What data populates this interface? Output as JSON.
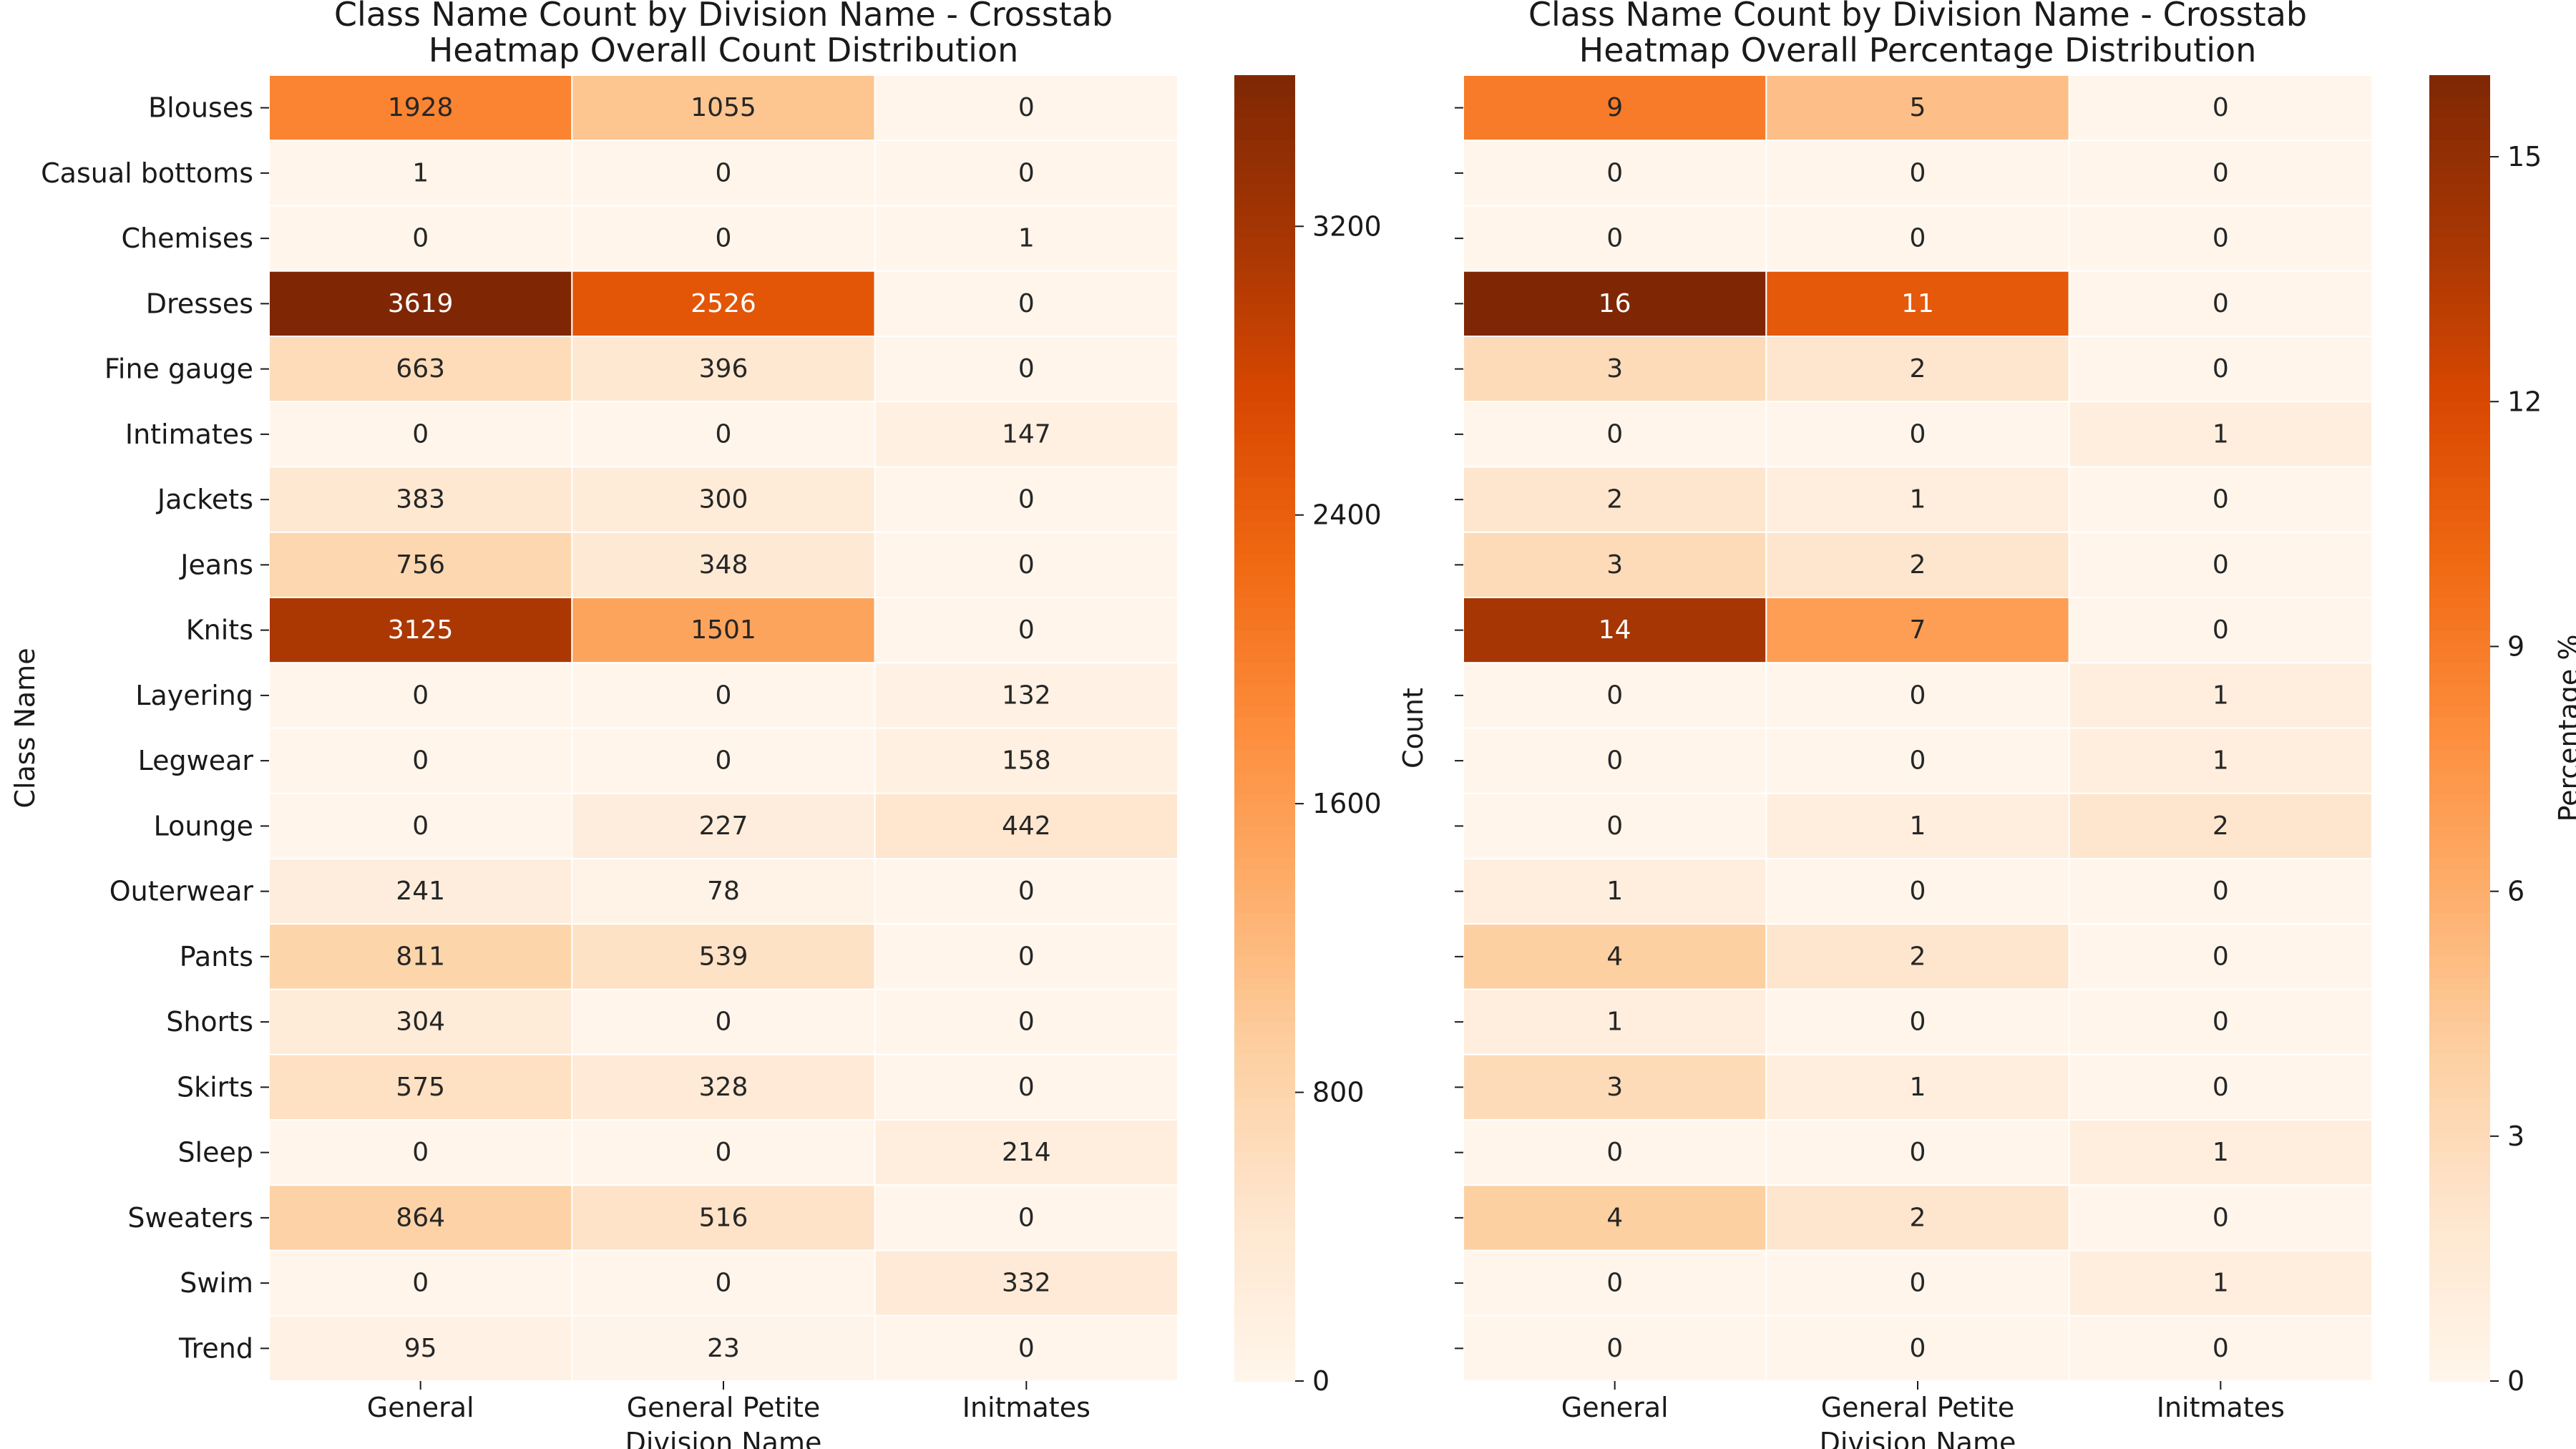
{
  "chart_data": [
    {
      "type": "heatmap",
      "title_lines": [
        "Class Name Count by Division Name - Crosstab",
        "Heatmap Overall Count Distribution"
      ],
      "xlabel": "Division Name",
      "ylabel": "Class Name",
      "x_categories": [
        "General",
        "General Petite",
        "Initmates"
      ],
      "y_categories": [
        "Blouses",
        "Casual bottoms",
        "Chemises",
        "Dresses",
        "Fine gauge",
        "Intimates",
        "Jackets",
        "Jeans",
        "Knits",
        "Layering",
        "Legwear",
        "Lounge",
        "Outerwear",
        "Pants",
        "Shorts",
        "Skirts",
        "Sleep",
        "Sweaters",
        "Swim",
        "Trend"
      ],
      "values": [
        [
          1928,
          1055,
          0
        ],
        [
          1,
          0,
          0
        ],
        [
          0,
          0,
          1
        ],
        [
          3619,
          2526,
          0
        ],
        [
          663,
          396,
          0
        ],
        [
          0,
          0,
          147
        ],
        [
          383,
          300,
          0
        ],
        [
          756,
          348,
          0
        ],
        [
          3125,
          1501,
          0
        ],
        [
          0,
          0,
          132
        ],
        [
          0,
          0,
          158
        ],
        [
          0,
          227,
          442
        ],
        [
          241,
          78,
          0
        ],
        [
          811,
          539,
          0
        ],
        [
          304,
          0,
          0
        ],
        [
          575,
          328,
          0
        ],
        [
          0,
          0,
          214
        ],
        [
          864,
          516,
          0
        ],
        [
          0,
          0,
          332
        ],
        [
          95,
          23,
          0
        ]
      ],
      "show_y_tick_labels": true,
      "colorbar": {
        "label": "Count",
        "range": [
          0,
          3619
        ],
        "ticks": [
          0,
          800,
          1600,
          2400,
          3200
        ],
        "colormap": "Oranges"
      }
    },
    {
      "type": "heatmap",
      "title_lines": [
        "Class Name Count by Division Name - Crosstab",
        "Heatmap Overall Percentage Distribution"
      ],
      "xlabel": "Division Name",
      "ylabel": "",
      "x_categories": [
        "General",
        "General Petite",
        "Initmates"
      ],
      "y_categories": [
        "Blouses",
        "Casual bottoms",
        "Chemises",
        "Dresses",
        "Fine gauge",
        "Intimates",
        "Jackets",
        "Jeans",
        "Knits",
        "Layering",
        "Legwear",
        "Lounge",
        "Outerwear",
        "Pants",
        "Shorts",
        "Skirts",
        "Sleep",
        "Sweaters",
        "Swim",
        "Trend"
      ],
      "values": [
        [
          9,
          5,
          0
        ],
        [
          0,
          0,
          0
        ],
        [
          0,
          0,
          0
        ],
        [
          16,
          11,
          0
        ],
        [
          3,
          2,
          0
        ],
        [
          0,
          0,
          1
        ],
        [
          2,
          1,
          0
        ],
        [
          3,
          2,
          0
        ],
        [
          14,
          7,
          0
        ],
        [
          0,
          0,
          1
        ],
        [
          0,
          0,
          1
        ],
        [
          0,
          1,
          2
        ],
        [
          1,
          0,
          0
        ],
        [
          4,
          2,
          0
        ],
        [
          1,
          0,
          0
        ],
        [
          3,
          1,
          0
        ],
        [
          0,
          0,
          1
        ],
        [
          4,
          2,
          0
        ],
        [
          0,
          0,
          1
        ],
        [
          0,
          0,
          0
        ]
      ],
      "show_y_tick_labels": false,
      "colorbar": {
        "label": "Percentage %",
        "range": [
          0,
          16
        ],
        "ticks": [
          0,
          3,
          6,
          9,
          12,
          15
        ],
        "colormap": "Oranges"
      }
    }
  ]
}
